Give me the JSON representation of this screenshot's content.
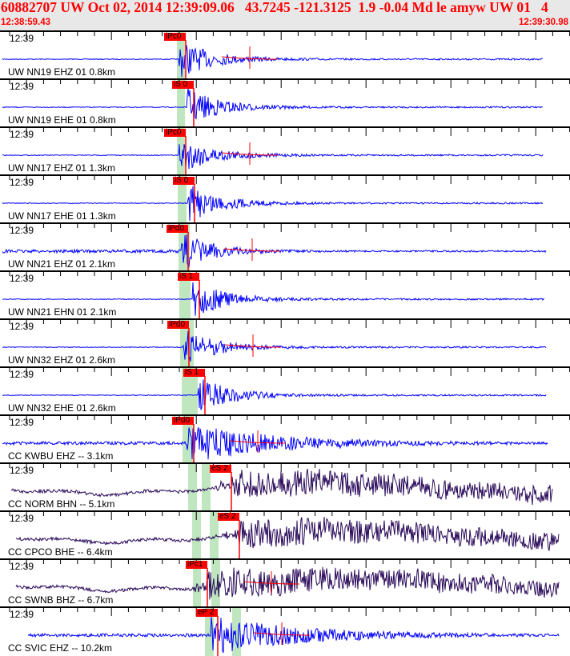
{
  "header": {
    "title": "60882707 UW Oct 02, 2014 12:39:09.06   43.7245 -121.3125  1.9 -0.04 Md le amyw UW 01   4",
    "start_time": "12:38:59.43",
    "end_time": "12:39:30.98"
  },
  "colors": {
    "header_text": "#ff0000",
    "pick": "#ff0000",
    "short_period": "#0000ff",
    "broadband": "#2a0a5a",
    "window": "#bfe6bf"
  },
  "panels": [
    {
      "time": "12:39",
      "label": "UW NN19 EHZ 01 0.8km",
      "pick": "iPc0"
    },
    {
      "time": "12:39",
      "label": "UW NN19 EHE 01 0.8km",
      "pick": "iS 0"
    },
    {
      "time": "12:39",
      "label": "UW NN17 EHZ 01 1.3km",
      "pick": "iPc0"
    },
    {
      "time": "12:39",
      "label": "UW NN17 EHE 01 1.3km",
      "pick": "iS 0"
    },
    {
      "time": "12:39",
      "label": "UW NN21 EHZ 01 2.1km",
      "pick": "iPd0"
    },
    {
      "time": "12:39",
      "label": "UW NN21 EHN 01 2.1km",
      "pick": "iS 1"
    },
    {
      "time": "12:39",
      "label": "UW NN32 EHZ 01 2.6km",
      "pick": "iPd0"
    },
    {
      "time": "12:39",
      "label": "UW NN32 EHE 01 2.6km",
      "pick": "iS 1"
    },
    {
      "time": "12:39",
      "label": "CC KWBU EHZ -- 3.1km",
      "pick": "iPd0"
    },
    {
      "time": "12:39",
      "label": "CC NORM BHN -- 5.1km",
      "pick": "eS 2"
    },
    {
      "time": "12:39",
      "label": "CC CPCO BHE -- 6.4km",
      "pick": "eS 2"
    },
    {
      "time": "12:39",
      "label": "CC SWNB BHZ -- 6.7km",
      "pick": "iPc1"
    },
    {
      "time": "12:39",
      "label": "CC SVIC EHZ -- 10.2km",
      "pick": "eP 2"
    }
  ]
}
